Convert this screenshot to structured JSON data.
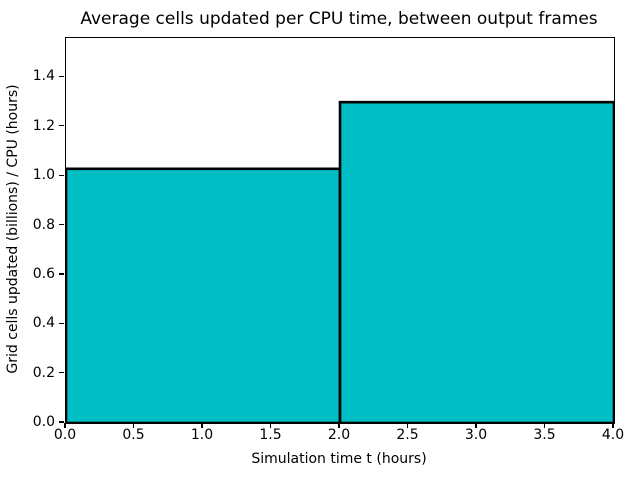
{
  "chart_data": {
    "type": "bar",
    "title": "Average cells updated per CPU time, between output frames",
    "xlabel": "Simulation time t (hours)",
    "ylabel": "Grid cells updated (billions) / CPU (hours)",
    "bars": [
      {
        "x0": 0.0,
        "x1": 2.0,
        "value": 1.03
      },
      {
        "x0": 2.0,
        "x1": 4.0,
        "value": 1.3
      }
    ],
    "xlim": [
      0.0,
      4.0
    ],
    "ylim": [
      0.0,
      1.56
    ],
    "xticks": {
      "values": [
        0.0,
        0.5,
        1.0,
        1.5,
        2.0,
        2.5,
        3.0,
        3.5,
        4.0
      ],
      "labels": [
        "0.0",
        "0.5",
        "1.0",
        "1.5",
        "2.0",
        "2.5",
        "3.0",
        "3.5",
        "4.0"
      ]
    },
    "yticks": {
      "values": [
        0.0,
        0.2,
        0.4,
        0.6,
        0.8,
        1.0,
        1.2,
        1.4
      ],
      "labels": [
        "0.0",
        "0.2",
        "0.4",
        "0.6",
        "0.8",
        "1.0",
        "1.2",
        "1.4"
      ]
    },
    "grid": false,
    "legend": null,
    "colors": {
      "bar_fill": "#00BFC4",
      "bar_edge": "#000000",
      "axis": "#000000",
      "background": "#ffffff"
    },
    "bar_edge_width": 2.6
  }
}
